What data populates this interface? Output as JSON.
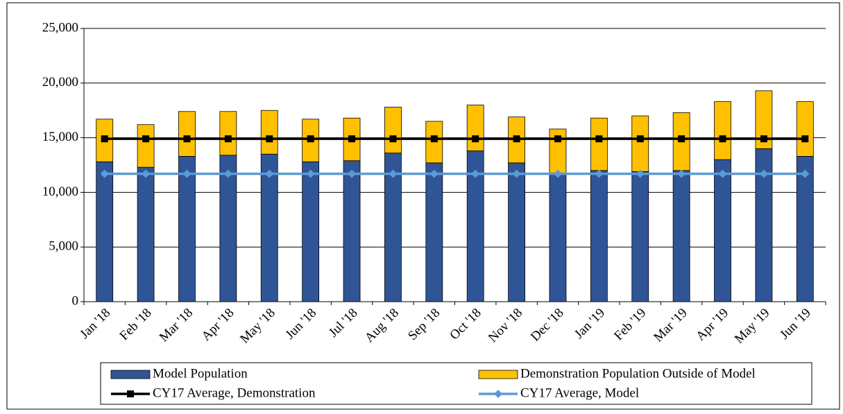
{
  "chart_data": {
    "type": "bar",
    "stacked": true,
    "categories": [
      "Jan '18",
      "Feb '18",
      "Mar '18",
      "Apr '18",
      "May '18",
      "Jun '18",
      "Jul '18",
      "Aug '18",
      "Sep '18",
      "Oct '18",
      "Nov '18",
      "Dec '18",
      "Jan '19",
      "Feb '19",
      "Mar '19",
      "Apr '19",
      "May '19",
      "Jun '19"
    ],
    "series": [
      {
        "name": "Model Population",
        "type": "bar",
        "color": "#2f5597",
        "values": [
          12800,
          12300,
          13300,
          13400,
          13500,
          12800,
          12900,
          13600,
          12700,
          13800,
          12700,
          11700,
          12000,
          11900,
          12000,
          13000,
          14000,
          13300
        ]
      },
      {
        "name": "Demonstration Population Outside of Model",
        "type": "bar",
        "color": "#ffc000",
        "values": [
          3900,
          3900,
          4100,
          4000,
          4000,
          3900,
          3900,
          4200,
          3800,
          4200,
          4200,
          4100,
          4800,
          5100,
          5300,
          5300,
          5300,
          5000
        ]
      },
      {
        "name": "CY17 Average, Demonstration",
        "type": "line",
        "color": "#000000",
        "marker": "square",
        "values": [
          14900,
          14900,
          14900,
          14900,
          14900,
          14900,
          14900,
          14900,
          14900,
          14900,
          14900,
          14900,
          14900,
          14900,
          14900,
          14900,
          14900,
          14900
        ]
      },
      {
        "name": "CY17 Average, Model",
        "type": "line",
        "color": "#5b9bd5",
        "marker": "diamond",
        "values": [
          11700,
          11700,
          11700,
          11700,
          11700,
          11700,
          11700,
          11700,
          11700,
          11700,
          11700,
          11700,
          11700,
          11700,
          11700,
          11700,
          11700,
          11700
        ]
      }
    ],
    "ylim": [
      0,
      25000
    ],
    "yticks": [
      0,
      {
        "value": 5000,
        "label": "5,000"
      },
      {
        "value": 10000,
        "label": "10,000"
      },
      {
        "value": 15000,
        "label": "15,000"
      },
      {
        "value": 20000,
        "label": "20,000"
      },
      {
        "value": 25000,
        "label": "25,000"
      }
    ],
    "grid": true,
    "legend": "bottom"
  }
}
